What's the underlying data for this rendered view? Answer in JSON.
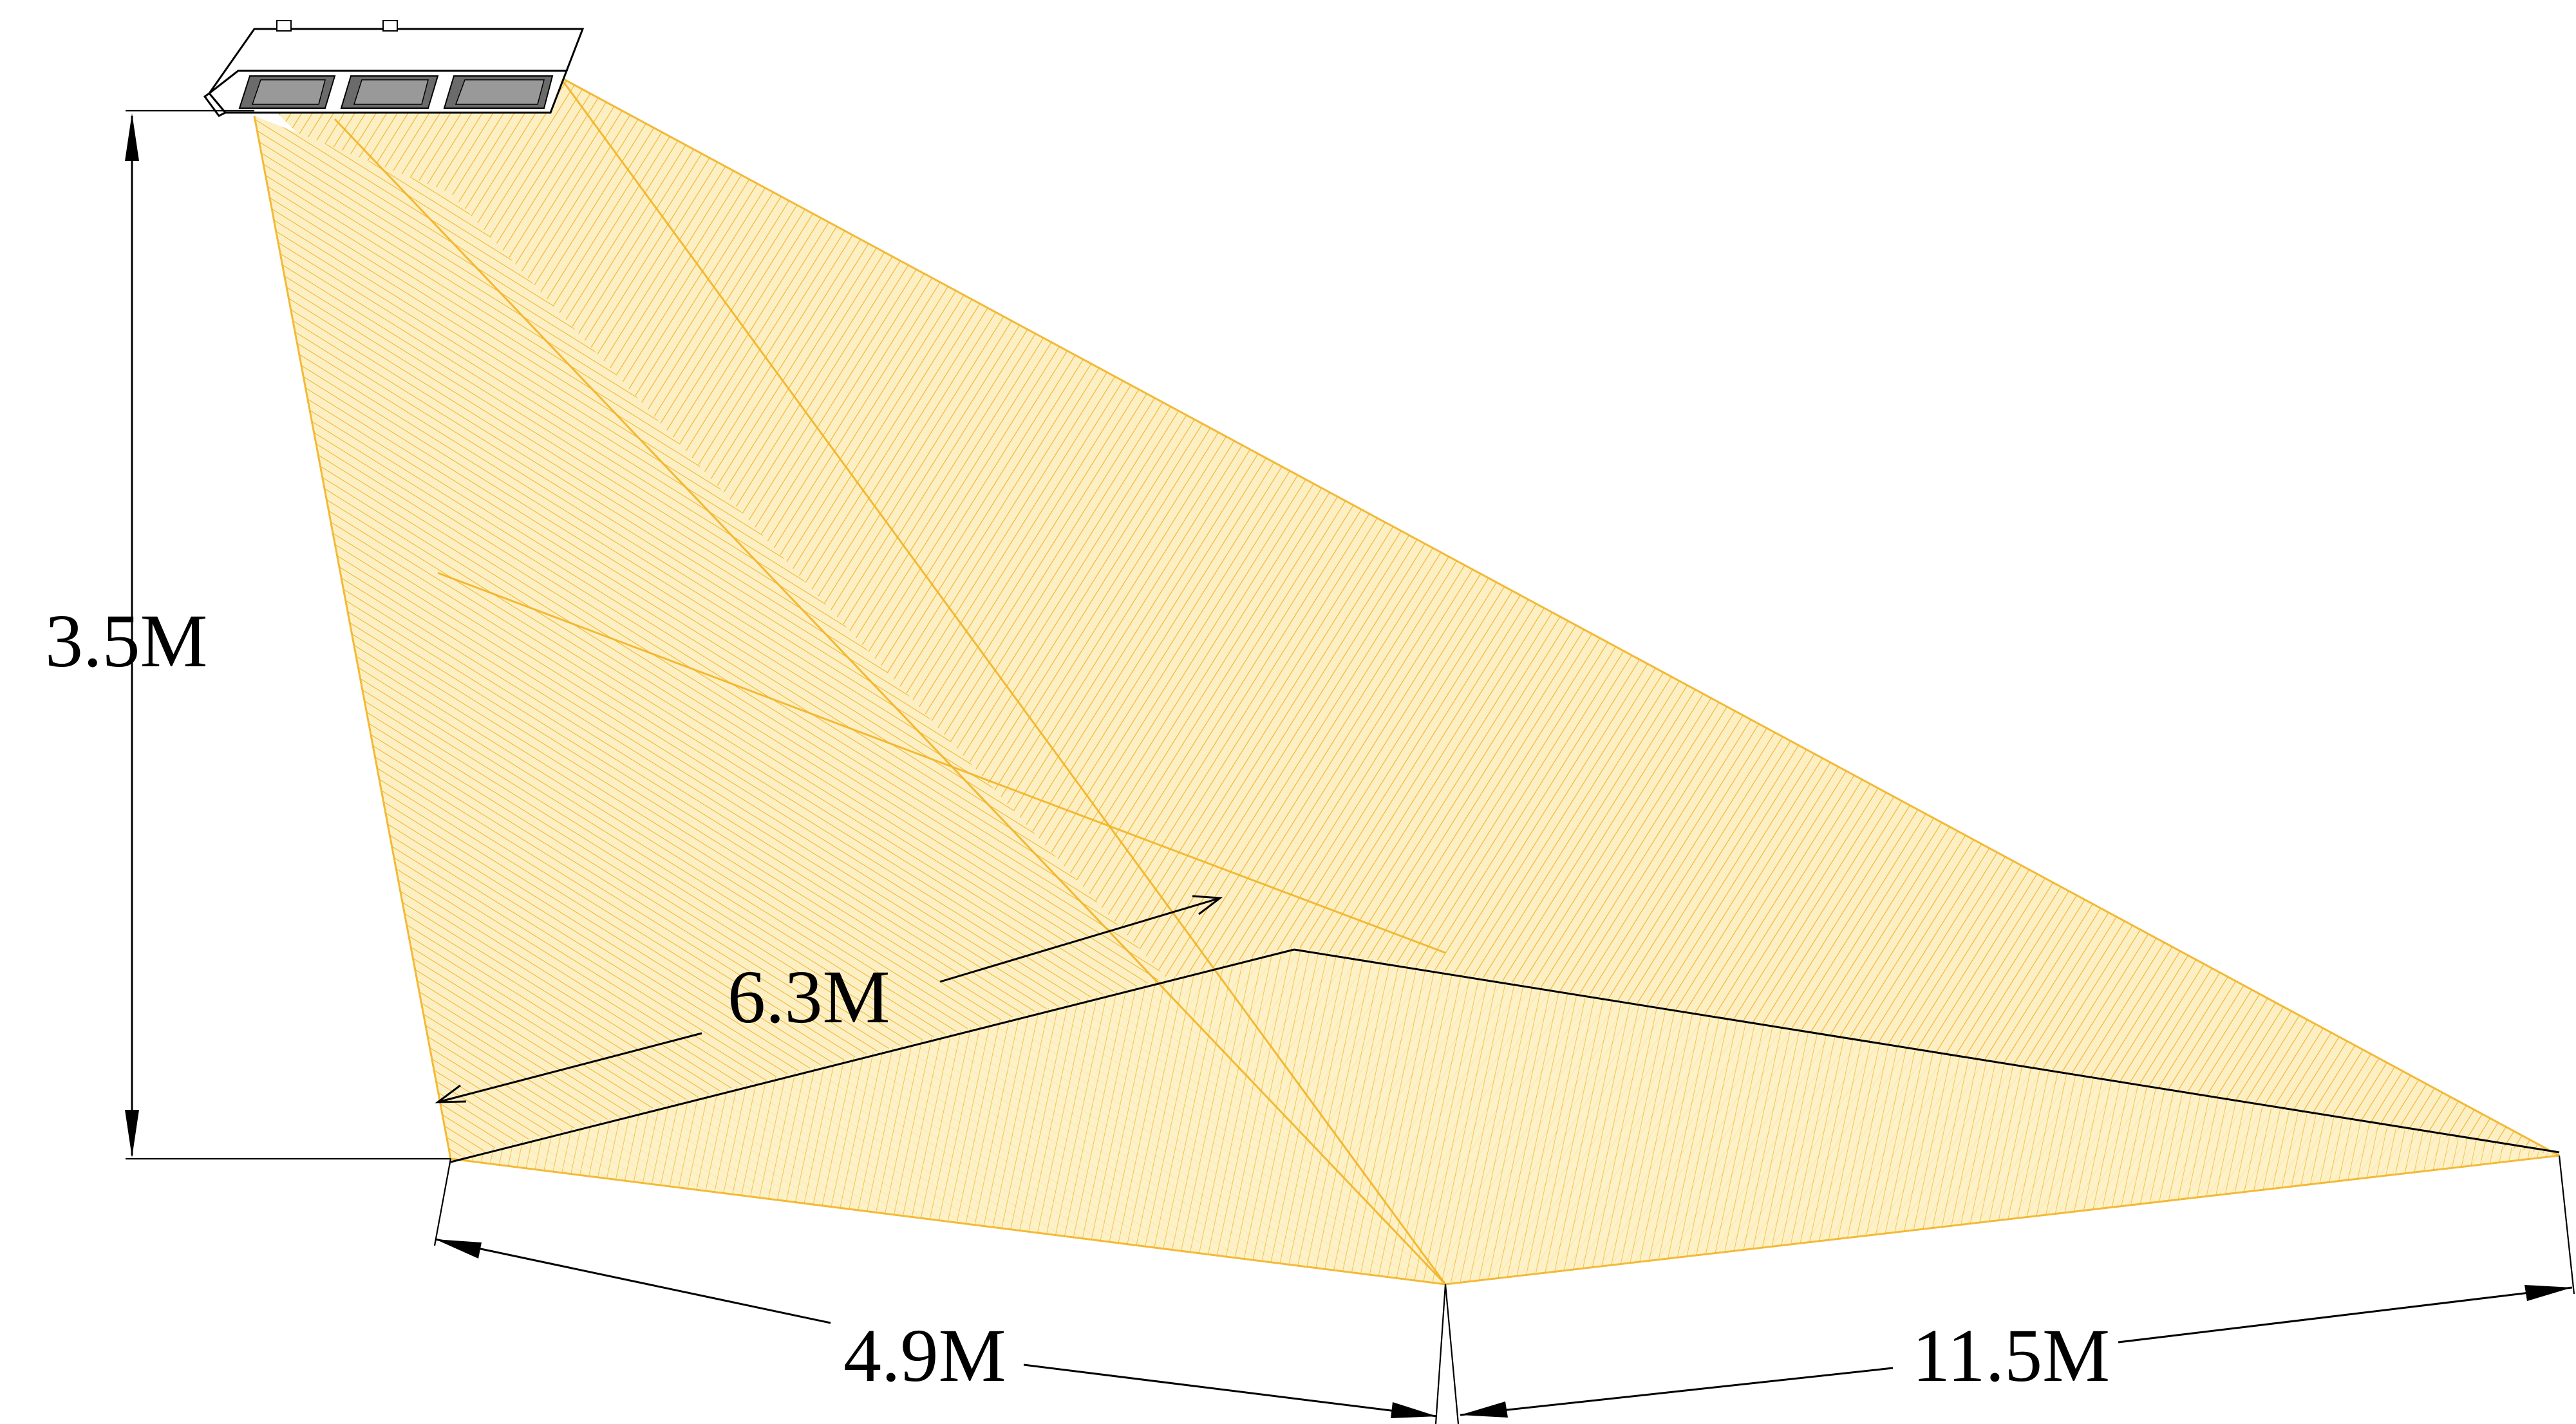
{
  "colors": {
    "beam_fill": "#fcefc4",
    "beam_hatch": "#f2b323",
    "lines": "#000000",
    "background": "#ffffff"
  },
  "dimensions": {
    "height": {
      "label": "3.5M",
      "value_m": 3.5
    },
    "diagonal": {
      "label": "6.3M",
      "value_m": 6.3
    },
    "near_width": {
      "label": "4.9M",
      "value_m": 4.9
    },
    "far_width": {
      "label": "11.5M",
      "value_m": 11.5
    }
  },
  "fixture": {
    "icon": "led-light-fixture-icon",
    "modules": 3
  }
}
